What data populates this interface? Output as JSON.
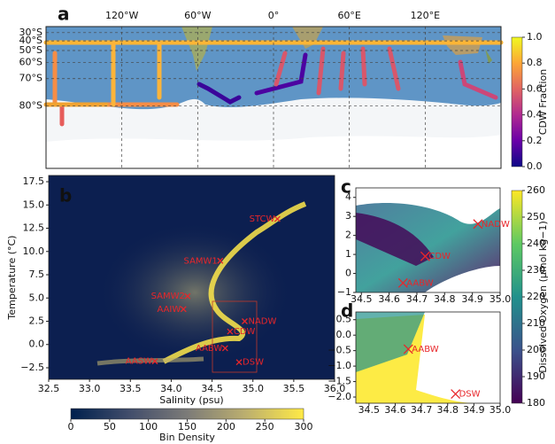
{
  "chart_data": [
    {
      "type": "map",
      "panel_label": "a",
      "xlim": [
        -180,
        180
      ],
      "ylim": [
        -22,
        -88
      ],
      "xticks": [
        {
          "value": -120,
          "label": "120°W"
        },
        {
          "value": -60,
          "label": "60°W"
        },
        {
          "value": 0,
          "label": "0°"
        },
        {
          "value": 60,
          "label": "60°E"
        },
        {
          "value": 120,
          "label": "120°E"
        }
      ],
      "yticks": [
        {
          "value": -30,
          "label": "30°S"
        },
        {
          "value": -40,
          "label": "40°S"
        },
        {
          "value": -50,
          "label": "50°S"
        },
        {
          "value": -60,
          "label": "60°S"
        },
        {
          "value": -70,
          "label": "70°S"
        },
        {
          "value": -80,
          "label": "80°S"
        }
      ],
      "grid": true,
      "colorbar": {
        "label": "CDW Fraction",
        "lim": [
          0,
          1
        ],
        "orientation": "vertical",
        "ticks": [
          {
            "value": 0,
            "label": "0.0"
          },
          {
            "value": 0.2,
            "label": "0.2"
          },
          {
            "value": 0.4,
            "label": "0.4"
          },
          {
            "value": 0.6,
            "label": "0.6"
          },
          {
            "value": 0.8,
            "label": "0.8"
          },
          {
            "value": 1,
            "label": "1.0"
          }
        ],
        "colors": [
          "#0d0887",
          "#6a00a8",
          "#b12a90",
          "#e16462",
          "#fca636",
          "#f0f921"
        ]
      }
    },
    {
      "type": "scatter",
      "panel_label": "b",
      "x_label": "Salinity (psu)",
      "y_label": "Temperature (°C)",
      "xlim": [
        32.5,
        36
      ],
      "ylim": [
        -3.74,
        18.17
      ],
      "xticks": [
        32.5,
        {
          "value": 33,
          "label": "33.0"
        },
        33.5,
        {
          "value": 34,
          "label": "34.0"
        },
        34.5,
        {
          "value": 35,
          "label": "35.0"
        },
        35.5,
        {
          "value": 36,
          "label": "36.0"
        }
      ],
      "yticks": [
        {
          "value": -2.5,
          "label": "−2.5"
        },
        {
          "value": 0,
          "label": "0.0"
        },
        2.5,
        {
          "value": 5,
          "label": "5.0"
        },
        7.5,
        {
          "value": 10,
          "label": "10.0"
        },
        12.5,
        {
          "value": 15,
          "label": "15.0"
        },
        17.5
      ],
      "marker_color": "#e8262a",
      "points": [
        {
          "name": "STCW",
          "x": 35.3,
          "y": 13.5
        },
        {
          "name": "SAMW1",
          "x": 34.6,
          "y": 9.0
        },
        {
          "name": "SAMW2",
          "x": 34.2,
          "y": 5.2
        },
        {
          "name": "AAIW",
          "x": 34.15,
          "y": 3.8
        },
        {
          "name": "NADW",
          "x": 34.9,
          "y": 2.5
        },
        {
          "name": "CDW",
          "x": 34.72,
          "y": 1.4
        },
        {
          "name": "AABW",
          "x": 34.66,
          "y": -0.4
        },
        {
          "name": "AASW",
          "x": 33.8,
          "y": -1.8
        },
        {
          "name": "DSW",
          "x": 34.83,
          "y": -1.9
        }
      ],
      "colorbar": {
        "label": "Bin Density",
        "lim": [
          0,
          300
        ],
        "orientation": "horizontal",
        "ticks": [
          0,
          50,
          100,
          150,
          200,
          250,
          300
        ],
        "colors": [
          "#00204d",
          "#414d6b",
          "#7c7b78",
          "#bcaf6f",
          "#ffea46"
        ]
      }
    },
    {
      "type": "scatter",
      "panel_label": "c",
      "xlim": [
        34.48,
        35.0
      ],
      "ylim": [
        -1,
        4.5
      ],
      "xticks": [
        34.5,
        34.6,
        34.7,
        34.8,
        34.9,
        {
          "value": 35,
          "label": "35.0"
        }
      ],
      "yticks": [
        {
          "value": -1,
          "label": "−1"
        },
        0,
        1,
        2,
        3,
        4
      ],
      "marker_color": "#e8262a",
      "points": [
        {
          "name": "NADW",
          "x": 34.92,
          "y": 2.6
        },
        {
          "name": "CDW",
          "x": 34.73,
          "y": 0.9
        },
        {
          "name": "AABW",
          "x": 34.65,
          "y": -0.5
        }
      ],
      "colorbar": {
        "label": "Dissolved Oxygen (µmol kg−1)",
        "lim": [
          180,
          260
        ],
        "orientation": "vertical",
        "ticks": [
          180,
          190,
          200,
          210,
          220,
          230,
          240,
          250,
          260
        ],
        "colors": [
          "#440154",
          "#3b528b",
          "#21918c",
          "#5ec962",
          "#fde725"
        ]
      }
    },
    {
      "type": "scatter",
      "panel_label": "d",
      "xlim": [
        34.45,
        35.0
      ],
      "ylim": [
        -2.2,
        0.75
      ],
      "xticks": [
        34.5,
        34.6,
        34.7,
        34.8,
        34.9,
        {
          "value": 35,
          "label": "35.0"
        }
      ],
      "yticks": [
        {
          "value": -2,
          "label": "−2.0"
        },
        {
          "value": -1.5,
          "label": "−1.5"
        },
        {
          "value": -1,
          "label": "−1.0"
        },
        {
          "value": -0.5,
          "label": "−0.5"
        },
        {
          "value": 0,
          "label": "0.0"
        },
        0.5
      ],
      "marker_color": "#e8262a",
      "points": [
        {
          "name": "AABW",
          "x": 34.65,
          "y": -0.45
        },
        {
          "name": "DSW",
          "x": 34.83,
          "y": -1.9
        }
      ]
    }
  ]
}
